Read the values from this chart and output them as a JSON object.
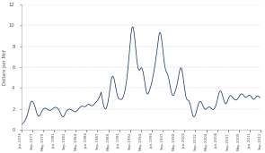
{
  "ylabel": "Dollars per Mcf",
  "ylim": [
    0,
    12
  ],
  "yticks": [
    0,
    2,
    4,
    6,
    8,
    10,
    12
  ],
  "line_color": "#1a3a6b",
  "line_width": 0.55,
  "x_tick_labels": [
    "Jan-1976",
    "Sep-1977",
    "May-1979",
    "Jan-1981",
    "Sep-1982",
    "May-1984",
    "Jan-1986",
    "Sep-1987",
    "May-1989",
    "Jan-1991",
    "Sep-1992",
    "May-1994",
    "Jan-1996",
    "Sep-1997",
    "May-1999",
    "Jan-2001",
    "Sep-2002",
    "May-2004",
    "Jan-2006",
    "Sep-2007",
    "May-2009",
    "Jan-2011",
    "Sep-2012"
  ],
  "data_points": [
    0.45,
    0.48,
    0.52,
    0.55,
    0.58,
    0.6,
    0.63,
    0.66,
    0.7,
    0.74,
    0.78,
    0.83,
    0.88,
    0.93,
    0.99,
    1.05,
    1.12,
    1.19,
    1.28,
    1.37,
    1.47,
    1.57,
    1.68,
    1.8,
    1.92,
    2.05,
    2.18,
    2.3,
    2.42,
    2.52,
    2.6,
    2.65,
    2.7,
    2.72,
    2.73,
    2.72,
    2.7,
    2.67,
    2.63,
    2.58,
    2.52,
    2.45,
    2.37,
    2.28,
    2.18,
    2.08,
    1.97,
    1.86,
    1.75,
    1.65,
    1.56,
    1.48,
    1.42,
    1.37,
    1.33,
    1.3,
    1.28,
    1.3,
    1.33,
    1.37,
    1.42,
    1.48,
    1.54,
    1.6,
    1.66,
    1.72,
    1.78,
    1.83,
    1.88,
    1.92,
    1.96,
    1.99,
    2.02,
    2.04,
    2.06,
    2.07,
    2.08,
    2.07,
    2.06,
    2.04,
    2.02,
    2.0,
    1.98,
    1.96,
    1.94,
    1.92,
    1.9,
    1.88,
    1.87,
    1.86,
    1.85,
    1.85,
    1.85,
    1.86,
    1.87,
    1.89,
    1.91,
    1.93,
    1.96,
    1.98,
    2.01,
    2.03,
    2.06,
    2.08,
    2.1,
    2.12,
    2.13,
    2.14,
    2.15,
    2.15,
    2.15,
    2.14,
    2.13,
    2.12,
    2.1,
    2.08,
    2.05,
    2.02,
    1.98,
    1.95,
    1.9,
    1.84,
    1.78,
    1.71,
    1.64,
    1.57,
    1.5,
    1.44,
    1.38,
    1.33,
    1.29,
    1.26,
    1.24,
    1.23,
    1.24,
    1.26,
    1.3,
    1.35,
    1.41,
    1.48,
    1.55,
    1.62,
    1.68,
    1.73,
    1.78,
    1.82,
    1.86,
    1.89,
    1.92,
    1.94,
    1.96,
    1.97,
    1.98,
    1.98,
    1.98,
    1.97,
    1.96,
    1.95,
    1.94,
    1.92,
    1.9,
    1.88,
    1.86,
    1.84,
    1.82,
    1.8,
    1.78,
    1.76,
    1.74,
    1.73,
    1.72,
    1.72,
    1.72,
    1.73,
    1.74,
    1.76,
    1.78,
    1.81,
    1.84,
    1.87,
    1.91,
    1.95,
    1.99,
    2.03,
    2.07,
    2.1,
    2.13,
    2.16,
    2.18,
    2.2,
    2.22,
    2.24,
    2.25,
    2.26,
    2.26,
    2.26,
    2.25,
    2.24,
    2.23,
    2.22,
    2.21,
    2.2,
    2.2,
    2.21,
    2.22,
    2.24,
    2.26,
    2.29,
    2.32,
    2.35,
    2.38,
    2.4,
    2.42,
    2.43,
    2.43,
    2.43,
    2.42,
    2.4,
    2.38,
    2.36,
    2.34,
    2.32,
    2.31,
    2.3,
    2.3,
    2.3,
    2.31,
    2.32,
    2.34,
    2.36,
    2.39,
    2.42,
    2.45,
    2.48,
    2.51,
    2.54,
    2.57,
    2.6,
    2.63,
    2.66,
    2.7,
    2.74,
    2.78,
    2.82,
    2.87,
    2.92,
    2.97,
    3.03,
    3.09,
    3.15,
    3.22,
    3.3,
    3.4,
    3.52,
    3.6,
    3.45,
    3.3,
    3.1,
    2.9,
    2.72,
    2.56,
    2.42,
    2.3,
    2.2,
    2.12,
    2.06,
    2.02,
    2.0,
    2.0,
    2.02,
    2.06,
    2.12,
    2.2,
    2.3,
    2.42,
    2.55,
    2.7,
    2.87,
    3.05,
    3.25,
    3.47,
    3.7,
    3.94,
    4.18,
    4.4,
    4.6,
    4.77,
    4.9,
    5.0,
    5.07,
    5.11,
    5.12,
    5.1,
    5.05,
    4.98,
    4.88,
    4.76,
    4.62,
    4.46,
    4.3,
    4.13,
    3.96,
    3.8,
    3.65,
    3.51,
    3.38,
    3.27,
    3.17,
    3.09,
    3.03,
    2.98,
    2.95,
    2.93,
    2.92,
    2.91,
    2.91,
    2.9,
    2.9,
    2.9,
    2.91,
    2.93,
    2.96,
    3.0,
    3.06,
    3.13,
    3.21,
    3.3,
    3.41,
    3.53,
    3.66,
    3.8,
    3.95,
    4.12,
    4.3,
    4.5,
    4.72,
    4.96,
    5.22,
    5.5,
    5.8,
    6.12,
    6.46,
    6.8,
    7.15,
    7.5,
    7.85,
    8.2,
    8.54,
    8.86,
    9.15,
    9.4,
    9.6,
    9.74,
    9.82,
    9.85,
    9.82,
    9.74,
    9.6,
    9.42,
    9.2,
    8.95,
    8.67,
    8.37,
    8.06,
    7.74,
    7.42,
    7.12,
    6.83,
    6.57,
    6.34,
    6.14,
    5.98,
    5.86,
    5.77,
    5.72,
    5.7,
    5.71,
    5.74,
    5.79,
    5.85,
    5.9,
    5.93,
    5.94,
    5.92,
    5.87,
    5.8,
    5.7,
    5.57,
    5.42,
    5.25,
    5.06,
    4.86,
    4.65,
    4.44,
    4.24,
    4.05,
    3.88,
    3.73,
    3.61,
    3.52,
    3.46,
    3.43,
    3.42,
    3.44,
    3.48,
    3.54,
    3.62,
    3.7,
    3.79,
    3.88,
    3.98,
    4.08,
    4.19,
    4.3,
    4.42,
    4.55,
    4.68,
    4.82,
    4.97,
    5.12,
    5.28,
    5.45,
    5.62,
    5.8,
    5.99,
    6.18,
    6.38,
    6.59,
    6.8,
    7.02,
    7.25,
    7.48,
    7.72,
    7.97,
    8.22,
    8.47,
    8.7,
    8.91,
    9.08,
    9.2,
    9.28,
    9.3,
    9.28,
    9.2,
    9.08,
    8.91,
    8.71,
    8.48,
    8.22,
    7.95,
    7.66,
    7.38,
    7.1,
    6.83,
    6.58,
    6.35,
    6.15,
    5.97,
    5.83,
    5.71,
    5.62,
    5.55,
    5.49,
    5.43,
    5.37,
    5.3,
    5.22,
    5.12,
    5.0,
    4.87,
    4.72,
    4.56,
    4.39,
    4.21,
    4.04,
    3.88,
    3.73,
    3.6,
    3.49,
    3.4,
    3.34,
    3.3,
    3.28,
    3.28,
    3.3,
    3.34,
    3.4,
    3.47,
    3.55,
    3.64,
    3.73,
    3.83,
    3.94,
    4.05,
    4.17,
    4.3,
    4.44,
    4.59,
    4.75,
    4.92,
    5.1,
    5.28,
    5.45,
    5.6,
    5.73,
    5.83,
    5.9,
    5.93,
    5.92,
    5.87,
    5.78,
    5.65,
    5.5,
    5.32,
    5.12,
    4.9,
    4.67,
    4.44,
    4.2,
    3.97,
    3.75,
    3.55,
    3.37,
    3.22,
    3.09,
    2.99,
    2.92,
    2.88,
    2.85,
    2.84,
    2.83,
    2.82,
    2.8,
    2.76,
    2.7,
    2.62,
    2.52,
    2.4,
    2.27,
    2.13,
    1.99,
    1.85,
    1.72,
    1.6,
    1.5,
    1.41,
    1.34,
    1.29,
    1.26,
    1.25,
    1.26,
    1.29,
    1.34,
    1.4,
    1.48,
    1.57,
    1.67,
    1.78,
    1.9,
    2.02,
    2.14,
    2.25,
    2.35,
    2.44,
    2.52,
    2.59,
    2.64,
    2.68,
    2.7,
    2.71,
    2.7,
    2.68,
    2.64,
    2.6,
    2.54,
    2.48,
    2.42,
    2.35,
    2.28,
    2.21,
    2.15,
    2.09,
    2.04,
    2.0,
    1.97,
    1.95,
    1.95,
    1.96,
    1.98,
    2.01,
    2.04,
    2.07,
    2.1,
    2.13,
    2.15,
    2.17,
    2.18,
    2.18,
    2.18,
    2.17,
    2.15,
    2.13,
    2.1,
    2.07,
    2.04,
    2.01,
    1.98,
    1.96,
    1.94,
    1.93,
    1.93,
    1.94,
    1.96,
    1.99,
    2.03,
    2.08,
    2.14,
    2.21,
    2.29,
    2.38,
    2.48,
    2.59,
    2.71,
    2.84,
    2.97,
    3.1,
    3.23,
    3.35,
    3.46,
    3.55,
    3.62,
    3.67,
    3.7,
    3.71,
    3.7,
    3.67,
    3.62,
    3.55,
    3.46,
    3.36,
    3.25,
    3.14,
    3.02,
    2.91,
    2.81,
    2.72,
    2.64,
    2.58,
    2.53,
    2.5,
    2.49,
    2.5,
    2.53,
    2.58,
    2.64,
    2.71,
    2.79,
    2.87,
    2.95,
    3.03,
    3.1,
    3.16,
    3.21,
    3.24,
    3.26,
    3.27,
    3.27,
    3.26,
    3.24,
    3.21,
    3.17,
    3.13,
    3.09,
    3.05,
    3.01,
    2.97,
    2.94,
    2.91,
    2.89,
    2.87,
    2.86,
    2.85,
    2.85,
    2.85,
    2.86,
    2.88,
    2.9,
    2.93,
    2.97,
    3.01,
    3.06,
    3.11,
    3.16,
    3.21,
    3.26,
    3.3,
    3.34,
    3.38,
    3.41,
    3.43,
    3.44,
    3.44,
    3.43,
    3.41,
    3.38,
    3.35,
    3.31,
    3.27,
    3.23,
    3.19,
    3.16,
    3.13,
    3.11,
    3.1,
    3.1,
    3.11,
    3.13,
    3.15,
    3.18,
    3.21,
    3.24,
    3.27,
    3.29,
    3.31,
    3.32,
    3.32,
    3.32,
    3.3,
    3.28,
    3.25,
    3.21,
    3.17,
    3.12,
    3.07,
    3.03,
    2.98,
    2.95,
    2.92,
    2.91,
    2.91,
    2.92,
    2.94,
    2.97,
    3.01,
    3.05,
    3.09,
    3.13,
    3.17,
    3.2,
    3.22,
    3.23,
    3.24,
    3.23,
    3.22,
    3.2,
    3.18,
    3.15,
    3.12,
    3.1,
    3.08,
    3.07,
    3.07
  ]
}
